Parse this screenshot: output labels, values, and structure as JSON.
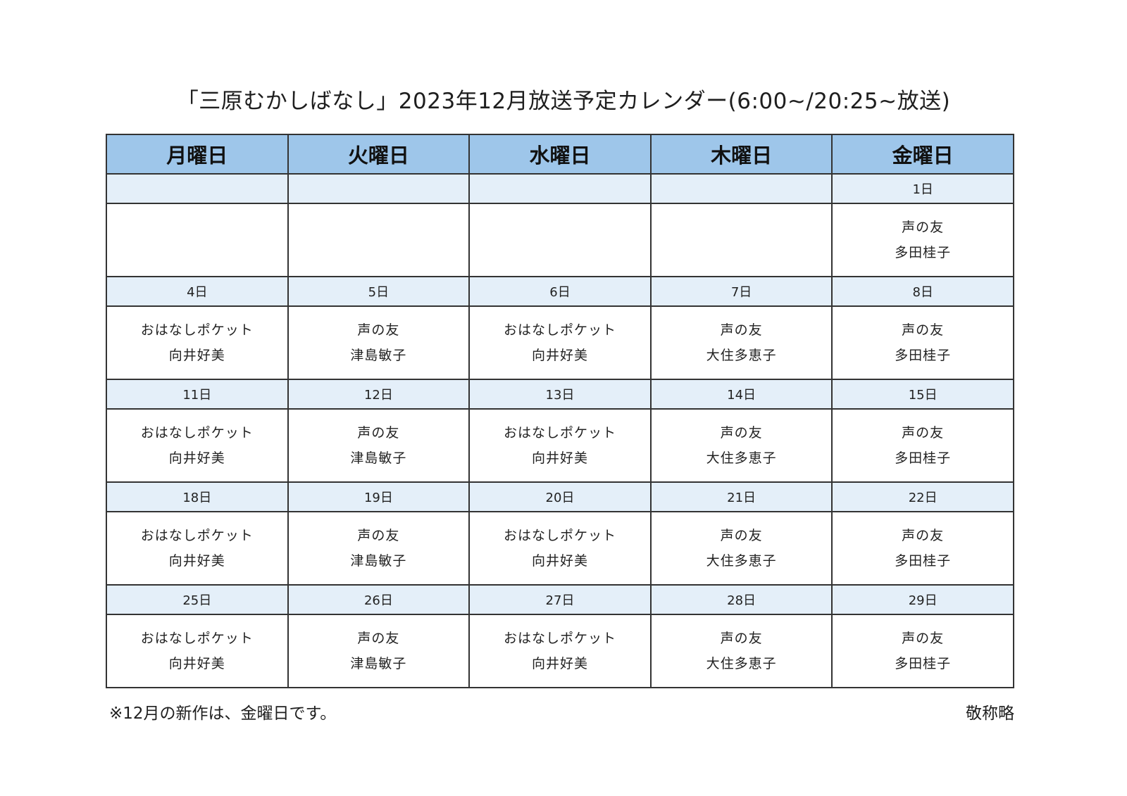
{
  "title": "「三原むかしばなし」2023年12月放送予定カレンダー(6:00~/20:25~放送)",
  "headers": [
    "月曜日",
    "火曜日",
    "水曜日",
    "木曜日",
    "金曜日"
  ],
  "weeks": [
    {
      "dates": [
        "",
        "",
        "",
        "",
        "1日"
      ],
      "cells": [
        {
          "program": "",
          "narrator": ""
        },
        {
          "program": "",
          "narrator": ""
        },
        {
          "program": "",
          "narrator": ""
        },
        {
          "program": "",
          "narrator": ""
        },
        {
          "program": "声の友",
          "narrator": "多田桂子"
        }
      ]
    },
    {
      "dates": [
        "4日",
        "5日",
        "6日",
        "7日",
        "8日"
      ],
      "cells": [
        {
          "program": "おはなしポケット",
          "narrator": "向井好美"
        },
        {
          "program": "声の友",
          "narrator": "津島敏子"
        },
        {
          "program": "おはなしポケット",
          "narrator": "向井好美"
        },
        {
          "program": "声の友",
          "narrator": "大住多恵子"
        },
        {
          "program": "声の友",
          "narrator": "多田桂子"
        }
      ]
    },
    {
      "dates": [
        "11日",
        "12日",
        "13日",
        "14日",
        "15日"
      ],
      "cells": [
        {
          "program": "おはなしポケット",
          "narrator": "向井好美"
        },
        {
          "program": "声の友",
          "narrator": "津島敏子"
        },
        {
          "program": "おはなしポケット",
          "narrator": "向井好美"
        },
        {
          "program": "声の友",
          "narrator": "大住多恵子"
        },
        {
          "program": "声の友",
          "narrator": "多田桂子"
        }
      ]
    },
    {
      "dates": [
        "18日",
        "19日",
        "20日",
        "21日",
        "22日"
      ],
      "cells": [
        {
          "program": "おはなしポケット",
          "narrator": "向井好美"
        },
        {
          "program": "声の友",
          "narrator": "津島敏子"
        },
        {
          "program": "おはなしポケット",
          "narrator": "向井好美"
        },
        {
          "program": "声の友",
          "narrator": "大住多恵子"
        },
        {
          "program": "声の友",
          "narrator": "多田桂子"
        }
      ]
    },
    {
      "dates": [
        "25日",
        "26日",
        "27日",
        "28日",
        "29日"
      ],
      "cells": [
        {
          "program": "おはなしポケット",
          "narrator": "向井好美"
        },
        {
          "program": "声の友",
          "narrator": "津島敏子"
        },
        {
          "program": "おはなしポケット",
          "narrator": "向井好美"
        },
        {
          "program": "声の友",
          "narrator": "大住多恵子"
        },
        {
          "program": "声の友",
          "narrator": "多田桂子"
        }
      ]
    }
  ],
  "footnote": "※12月の新作は、金曜日です。",
  "honorific_note": "敬称略",
  "colors": {
    "header_bg": "#9ec6ea",
    "date_row_bg": "#e4eff9",
    "border": "#333333"
  }
}
